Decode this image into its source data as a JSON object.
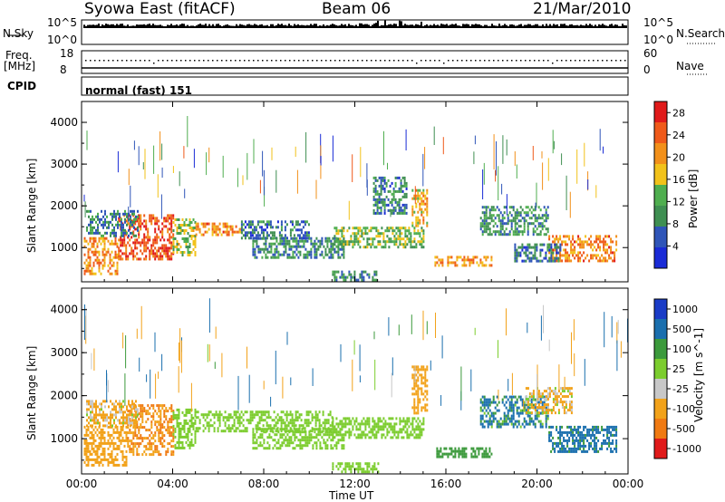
{
  "header": {
    "title_left": "Syowa East (fitACF)",
    "title_center": "Beam 06",
    "title_right": "21/Mar/2010"
  },
  "noise_panel": {
    "left_label": "N.Sky",
    "right_label": "N.Search",
    "left_ticks": [
      "10^5",
      "10^0"
    ],
    "right_ticks": [
      "10^5",
      "10^0"
    ]
  },
  "freq_panel": {
    "left_label_1": "Freq.",
    "left_label_2": "[MHz]",
    "right_label": "Nave",
    "left_ticks": [
      "18",
      "8"
    ],
    "right_ticks": [
      "60",
      "0"
    ]
  },
  "cpid_panel": {
    "label": "CPID",
    "value": "normal (fast) 151"
  },
  "colors": {
    "power_scale": [
      "#1a2bd6",
      "#2f55b8",
      "#3f8f52",
      "#4fae4f",
      "#f2c21a",
      "#f2901a",
      "#ef5a1a",
      "#e01a1a"
    ],
    "velocity_scale": [
      "#1a3cc7",
      "#1a6fae",
      "#3c9a3c",
      "#7ccd2e",
      "#c8c8c8",
      "#f2a21a",
      "#f07a12",
      "#e01a1a"
    ]
  },
  "chart_data": [
    {
      "type": "heatmap",
      "name": "power",
      "ylabel": "Slant Range [km]",
      "xlabel": "",
      "x_ticks": [
        "00:00",
        "04:00",
        "08:00",
        "12:00",
        "16:00",
        "20:00",
        "00:00"
      ],
      "y_ticks": [
        "1000",
        "2000",
        "3000",
        "4000"
      ],
      "xlim_hours": [
        0,
        24
      ],
      "ylim_km": [
        180,
        4500
      ],
      "colorbar": {
        "label": "Power [dB]",
        "ticks": [
          "4",
          "8",
          "12",
          "16",
          "20",
          "24",
          "28"
        ],
        "range": [
          0,
          30
        ]
      },
      "patches": [
        {
          "t0": 0.1,
          "t1": 1.6,
          "r0": 400,
          "r1": 1250,
          "v": 21
        },
        {
          "t0": 1.6,
          "t1": 4.0,
          "r0": 700,
          "r1": 1800,
          "v": 25
        },
        {
          "t0": 0.2,
          "t1": 2.5,
          "r0": 1300,
          "r1": 1900,
          "v": 9
        },
        {
          "t0": 4.0,
          "t1": 5.0,
          "r0": 800,
          "r1": 1700,
          "v": 14
        },
        {
          "t0": 5.0,
          "t1": 7.0,
          "r0": 1300,
          "r1": 1600,
          "v": 22
        },
        {
          "t0": 7.0,
          "t1": 10.0,
          "r0": 1200,
          "r1": 1650,
          "v": 7
        },
        {
          "t0": 7.5,
          "t1": 11.5,
          "r0": 750,
          "r1": 1250,
          "v": 9
        },
        {
          "t0": 11.0,
          "t1": 15.0,
          "r0": 1000,
          "r1": 1500,
          "v": 13
        },
        {
          "t0": 14.5,
          "t1": 15.2,
          "r0": 1500,
          "r1": 2400,
          "v": 18
        },
        {
          "t0": 12.8,
          "t1": 14.3,
          "r0": 1800,
          "r1": 2700,
          "v": 8
        },
        {
          "t0": 15.5,
          "t1": 18.0,
          "r0": 600,
          "r1": 800,
          "v": 20
        },
        {
          "t0": 11.0,
          "t1": 13.0,
          "r0": 200,
          "r1": 450,
          "v": 9
        },
        {
          "t0": 17.5,
          "t1": 20.5,
          "r0": 1300,
          "r1": 2000,
          "v": 10
        },
        {
          "t0": 20.5,
          "t1": 23.5,
          "r0": 700,
          "r1": 1300,
          "v": 22
        },
        {
          "t0": 19.0,
          "t1": 21.0,
          "r0": 700,
          "r1": 1100,
          "v": 8
        }
      ]
    },
    {
      "type": "heatmap",
      "name": "velocity",
      "ylabel": "Slant Range [km]",
      "xlabel": "Time UT",
      "x_ticks": [
        "00:00",
        "04:00",
        "08:00",
        "12:00",
        "16:00",
        "20:00",
        "00:00"
      ],
      "y_ticks": [
        "1000",
        "2000",
        "3000",
        "4000"
      ],
      "xlim_hours": [
        0,
        24
      ],
      "ylim_km": [
        180,
        4500
      ],
      "colorbar": {
        "label": "Velocity [m s^-1]",
        "ticks": [
          "1000",
          "500",
          "100",
          "25",
          "-25",
          "-100",
          "-500",
          "-1000"
        ]
      },
      "patches": [
        {
          "t0": 0.1,
          "t1": 2.0,
          "r0": 400,
          "r1": 1300,
          "v": -300
        },
        {
          "t0": 2.0,
          "t1": 4.0,
          "r0": 600,
          "r1": 1800,
          "v": -500
        },
        {
          "t0": 0.2,
          "t1": 2.5,
          "r0": 1300,
          "r1": 1900,
          "v": -150
        },
        {
          "t0": 4.0,
          "t1": 5.0,
          "r0": 800,
          "r1": 1700,
          "v": 0
        },
        {
          "t0": 5.0,
          "t1": 11.0,
          "r0": 1200,
          "r1": 1650,
          "v": 0
        },
        {
          "t0": 7.5,
          "t1": 11.5,
          "r0": 750,
          "r1": 1250,
          "v": 0
        },
        {
          "t0": 11.0,
          "t1": 15.0,
          "r0": 1000,
          "r1": 1500,
          "v": 0
        },
        {
          "t0": 14.5,
          "t1": 15.2,
          "r0": 1600,
          "r1": 2700,
          "v": -300
        },
        {
          "t0": 15.5,
          "t1": 18.0,
          "r0": 600,
          "r1": 800,
          "v": 60
        },
        {
          "t0": 17.5,
          "t1": 20.5,
          "r0": 1300,
          "r1": 2000,
          "v": 150
        },
        {
          "t0": 20.5,
          "t1": 23.5,
          "r0": 700,
          "r1": 1300,
          "v": 200
        },
        {
          "t0": 19.5,
          "t1": 21.5,
          "r0": 1600,
          "r1": 2200,
          "v": -150
        },
        {
          "t0": 11.0,
          "t1": 13.0,
          "r0": 200,
          "r1": 450,
          "v": 0
        }
      ]
    }
  ]
}
